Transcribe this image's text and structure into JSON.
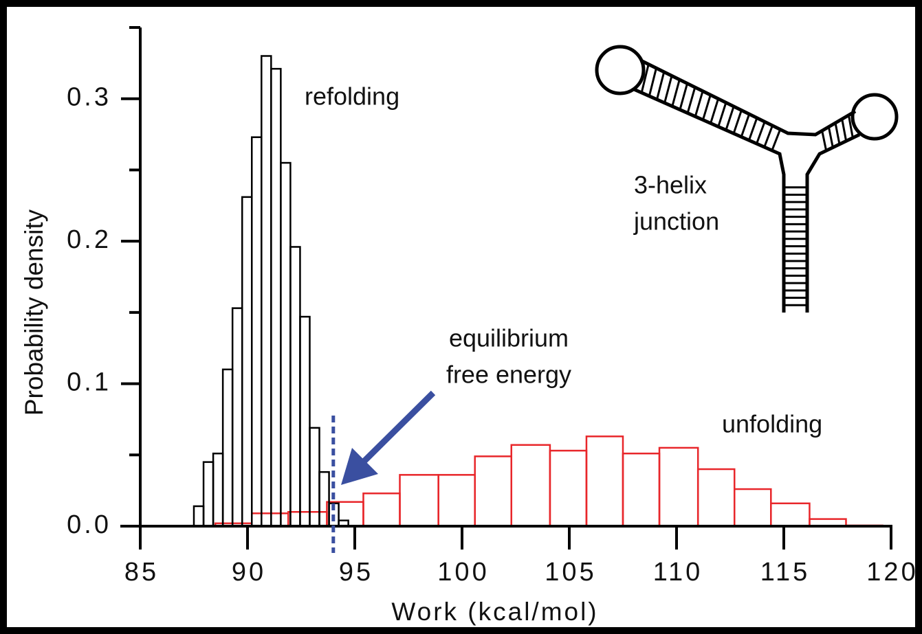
{
  "chart_data": {
    "type": "histogram",
    "xlabel": "Work (kcal/mol)",
    "ylabel": "Probability density",
    "xlim": [
      85,
      120
    ],
    "ylim": [
      0,
      0.35
    ],
    "xticks": [
      85,
      90,
      95,
      100,
      105,
      110,
      115,
      120
    ],
    "yticks": [
      {
        "value": 0,
        "label": "0.0"
      },
      0.1,
      0.2,
      0.3
    ],
    "yminor_ticks": [
      0.05,
      0.15,
      0.25,
      0.35
    ],
    "series": [
      {
        "name": "unfolding",
        "color": "#e8262a",
        "bins": [
          88.5,
          90.2,
          91.9,
          93.7,
          95.4,
          97.1,
          98.9,
          100.6,
          102.3,
          104.1,
          105.8,
          107.5,
          109.2,
          111.0,
          112.7,
          114.4,
          116.2,
          117.9,
          119.6
        ],
        "values": [
          0.002,
          0.009,
          0.01,
          0.017,
          0.023,
          0.036,
          0.036,
          0.049,
          0.057,
          0.053,
          0.063,
          0.051,
          0.055,
          0.04,
          0.026,
          0.016,
          0.005,
          0.0005
        ]
      },
      {
        "name": "refolding",
        "color": "#000000",
        "bins": [
          87.5,
          87.95,
          88.4,
          88.85,
          89.3,
          89.75,
          90.2,
          90.65,
          91.1,
          91.55,
          92.0,
          92.45,
          92.9,
          93.35,
          93.8,
          94.25,
          94.7
        ],
        "values": [
          0.014,
          0.045,
          0.051,
          0.11,
          0.153,
          0.231,
          0.273,
          0.33,
          0.321,
          0.255,
          0.196,
          0.147,
          0.069,
          0.038,
          0.016,
          0.004
        ]
      }
    ],
    "vline": {
      "x": 94,
      "color": "#3a4fa0"
    },
    "annotation": [
      "equilibrium",
      "free energy"
    ],
    "diagram_label": [
      "3-helix",
      "junction"
    ]
  }
}
